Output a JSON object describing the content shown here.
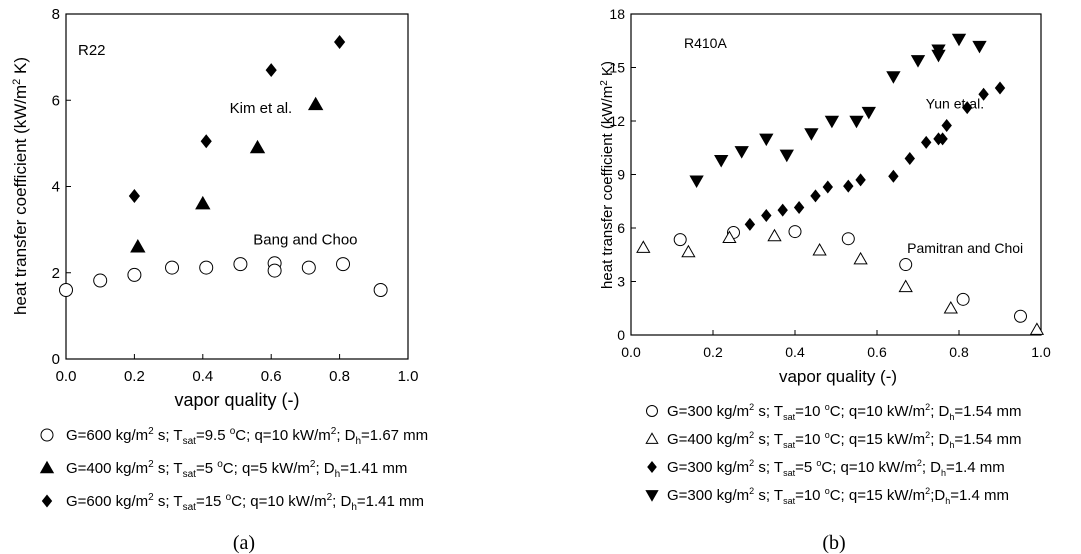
{
  "chart_data": [
    {
      "type": "scatter",
      "panel_label": "R22",
      "caption": "(a)",
      "xlabel": "vapor quality (-)",
      "ylabel": "heat transfer coefficient (kW/m² K)",
      "ylabel_parts": {
        "pre": "heat transfer coefficient (kW/m",
        "sup": "2",
        "post": " K)"
      },
      "xlim": [
        0.0,
        1.0
      ],
      "ylim": [
        0,
        8
      ],
      "xticks": [
        "0.0",
        "0.2",
        "0.4",
        "0.6",
        "0.8",
        "1.0"
      ],
      "xtick_values": [
        0.0,
        0.2,
        0.4,
        0.6,
        0.8,
        1.0
      ],
      "yticks": [
        "0",
        "2",
        "4",
        "6",
        "8"
      ],
      "ytick_values": [
        0,
        2,
        4,
        6,
        8
      ],
      "annotations": [
        {
          "text": "Kim et al.",
          "x": 0.57,
          "y": 5.7
        },
        {
          "text": "Bang and Choo",
          "x": 0.7,
          "y": 2.65
        }
      ],
      "series": [
        {
          "marker": "circle-open",
          "legend": [
            {
              "t": "G=600 kg/m"
            },
            {
              "t": "2",
              "sup": true
            },
            {
              "t": " s; T"
            },
            {
              "t": "sat",
              "sub": true
            },
            {
              "t": "=9.5 "
            },
            {
              "t": "o",
              "sup": true
            },
            {
              "t": "C; q=10 kW/m"
            },
            {
              "t": "2",
              "sup": true
            },
            {
              "t": "; D"
            },
            {
              "t": "h",
              "sub": true
            },
            {
              "t": "=1.67 mm"
            }
          ],
          "x": [
            0.0,
            0.1,
            0.2,
            0.31,
            0.41,
            0.51,
            0.61,
            0.61,
            0.71,
            0.81,
            0.92
          ],
          "y": [
            1.6,
            1.82,
            1.95,
            2.12,
            2.12,
            2.2,
            2.22,
            2.05,
            2.12,
            2.2,
            1.6
          ]
        },
        {
          "marker": "triangle-up-filled",
          "legend": [
            {
              "t": "G=400 kg/m"
            },
            {
              "t": "2",
              "sup": true
            },
            {
              "t": " s; T"
            },
            {
              "t": "sat",
              "sub": true
            },
            {
              "t": "=5 "
            },
            {
              "t": "o",
              "sup": true
            },
            {
              "t": "C; q=5 kW/m"
            },
            {
              "t": "2",
              "sup": true
            },
            {
              "t": "; D"
            },
            {
              "t": "h",
              "sub": true
            },
            {
              "t": "=1.41 mm"
            }
          ],
          "x": [
            0.21,
            0.4,
            0.56,
            0.73
          ],
          "y": [
            2.6,
            3.6,
            4.9,
            5.9
          ]
        },
        {
          "marker": "diamond-filled",
          "legend": [
            {
              "t": "G=600 kg/m"
            },
            {
              "t": "2",
              "sup": true
            },
            {
              "t": " s; T"
            },
            {
              "t": "sat",
              "sub": true
            },
            {
              "t": "=15 "
            },
            {
              "t": "o",
              "sup": true
            },
            {
              "t": "C; q=10 kW/m"
            },
            {
              "t": "2",
              "sup": true
            },
            {
              "t": "; D"
            },
            {
              "t": "h",
              "sub": true
            },
            {
              "t": "=1.41 mm"
            }
          ],
          "x": [
            0.2,
            0.41,
            0.6,
            0.8
          ],
          "y": [
            3.78,
            5.05,
            6.7,
            7.35
          ]
        }
      ]
    },
    {
      "type": "scatter",
      "panel_label": "R410A",
      "caption": "(b)",
      "xlabel": "vapor quality (-)",
      "ylabel": "heat transfer coefficient (kW/m² K)",
      "ylabel_parts": {
        "pre": "heat transfer coefficient (kW/m",
        "sup": "2",
        "post": " K)"
      },
      "xlim": [
        0.0,
        1.0
      ],
      "ylim": [
        0,
        18
      ],
      "xticks": [
        "0.0",
        "0.2",
        "0.4",
        "0.6",
        "0.8",
        "1.0"
      ],
      "xtick_values": [
        0.0,
        0.2,
        0.4,
        0.6,
        0.8,
        1.0
      ],
      "yticks": [
        "0",
        "3",
        "6",
        "9",
        "12",
        "15",
        "18"
      ],
      "ytick_values": [
        0,
        3,
        6,
        9,
        12,
        15,
        18
      ],
      "annotations": [
        {
          "text": "Yun et al.",
          "x": 0.79,
          "y": 12.7
        },
        {
          "text": "Pamitran and Choi",
          "x": 0.815,
          "y": 4.6
        }
      ],
      "series": [
        {
          "marker": "circle-open",
          "legend": [
            {
              "t": "G=300 kg/m"
            },
            {
              "t": "2",
              "sup": true
            },
            {
              "t": " s; T"
            },
            {
              "t": "sat",
              "sub": true
            },
            {
              "t": "=10 "
            },
            {
              "t": "o",
              "sup": true
            },
            {
              "t": "C; q=10 kW/m"
            },
            {
              "t": "2",
              "sup": true
            },
            {
              "t": "; D"
            },
            {
              "t": "h",
              "sub": true
            },
            {
              "t": "=1.54 mm"
            }
          ],
          "x": [
            0.12,
            0.25,
            0.4,
            0.53,
            0.67,
            0.81,
            0.95
          ],
          "y": [
            5.35,
            5.75,
            5.8,
            5.4,
            3.95,
            2.0,
            1.05
          ]
        },
        {
          "marker": "triangle-up-open",
          "legend": [
            {
              "t": "G=400 kg/m"
            },
            {
              "t": "2",
              "sup": true
            },
            {
              "t": " s; T"
            },
            {
              "t": "sat",
              "sub": true
            },
            {
              "t": "=10 "
            },
            {
              "t": "o",
              "sup": true
            },
            {
              "t": "C; q=15 kW/m"
            },
            {
              "t": "2",
              "sup": true
            },
            {
              "t": "; D"
            },
            {
              "t": "h",
              "sub": true
            },
            {
              "t": "=1.54 mm"
            }
          ],
          "x": [
            0.03,
            0.14,
            0.24,
            0.35,
            0.46,
            0.56,
            0.67,
            0.78,
            0.99
          ],
          "y": [
            4.9,
            4.65,
            5.45,
            5.55,
            4.75,
            4.25,
            2.7,
            1.5,
            0.3
          ]
        },
        {
          "marker": "diamond-filled",
          "legend": [
            {
              "t": "G=300 kg/m"
            },
            {
              "t": "2",
              "sup": true
            },
            {
              "t": " s; T"
            },
            {
              "t": "sat",
              "sub": true
            },
            {
              "t": "=5 "
            },
            {
              "t": "o",
              "sup": true
            },
            {
              "t": "C; q=10 kW/m"
            },
            {
              "t": "2",
              "sup": true
            },
            {
              "t": "; D"
            },
            {
              "t": "h",
              "sub": true
            },
            {
              "t": "=1.4 mm"
            }
          ],
          "x": [
            0.29,
            0.33,
            0.37,
            0.41,
            0.45,
            0.48,
            0.53,
            0.56,
            0.64,
            0.68,
            0.72,
            0.75,
            0.76,
            0.77,
            0.82,
            0.86,
            0.9
          ],
          "y": [
            6.2,
            6.7,
            7.0,
            7.15,
            7.8,
            8.3,
            8.35,
            8.7,
            8.9,
            9.9,
            10.8,
            11.0,
            11.0,
            11.75,
            12.75,
            13.5,
            13.85
          ]
        },
        {
          "marker": "triangle-down-filled",
          "legend": [
            {
              "t": "G=300 kg/m"
            },
            {
              "t": "2",
              "sup": true
            },
            {
              "t": " s; T"
            },
            {
              "t": "sat",
              "sub": true
            },
            {
              "t": "=10 "
            },
            {
              "t": "o",
              "sup": true
            },
            {
              "t": "C; q=15 kW/m"
            },
            {
              "t": "2",
              "sup": true
            },
            {
              "t": ";D"
            },
            {
              "t": "h",
              "sub": true
            },
            {
              "t": "=1.4 mm"
            }
          ],
          "x": [
            0.16,
            0.22,
            0.27,
            0.33,
            0.38,
            0.44,
            0.49,
            0.55,
            0.58,
            0.64,
            0.7,
            0.75,
            0.75,
            0.8,
            0.85
          ],
          "y": [
            8.65,
            9.8,
            10.3,
            11.0,
            10.1,
            11.3,
            12.0,
            12.0,
            12.5,
            14.5,
            15.4,
            16.0,
            15.7,
            16.6,
            16.2
          ]
        }
      ]
    }
  ]
}
